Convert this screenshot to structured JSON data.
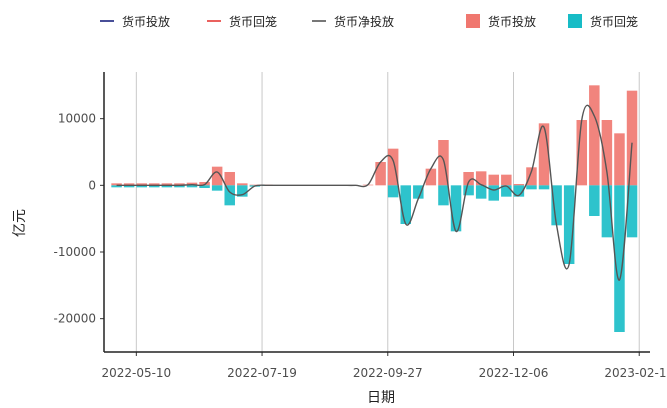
{
  "chart_data": {
    "type": "bar",
    "xlabel": "日期",
    "ylabel": "亿元",
    "ylim": [
      -25000,
      17000
    ],
    "y_ticks": [
      10000,
      0,
      -10000,
      -20000
    ],
    "x_ticks": [
      "2022-05-10",
      "2022-07-19",
      "2022-09-27",
      "2022-12-06",
      "2023-02-14"
    ],
    "x_range": [
      "2022-04-22",
      "2023-02-20"
    ],
    "grid": "vertical",
    "legend_position": "top",
    "legend": [
      {
        "label": "货币投放",
        "kind": "line",
        "color": "#1a237e"
      },
      {
        "label": "货币回笼",
        "kind": "line",
        "color": "#e53935"
      },
      {
        "label": "货币净投放",
        "kind": "line",
        "color": "#555555"
      },
      {
        "label": "货币投放",
        "kind": "bar",
        "color": "#f0776f"
      },
      {
        "label": "货币回笼",
        "kind": "bar",
        "color": "#17bcc6"
      }
    ],
    "series": [
      {
        "name": "货币投放",
        "color": "#f0776f",
        "x": [
          "2022-04-29",
          "2022-05-06",
          "2022-05-13",
          "2022-05-20",
          "2022-05-27",
          "2022-06-03",
          "2022-06-10",
          "2022-06-17",
          "2022-06-24",
          "2022-07-01",
          "2022-07-08",
          "2022-07-15",
          "2022-07-22",
          "2022-07-29",
          "2022-08-05",
          "2022-08-12",
          "2022-08-19",
          "2022-08-26",
          "2022-09-02",
          "2022-09-09",
          "2022-09-16",
          "2022-09-23",
          "2022-09-30",
          "2022-10-07",
          "2022-10-14",
          "2022-10-21",
          "2022-10-28",
          "2022-11-04",
          "2022-11-11",
          "2022-11-18",
          "2022-11-25",
          "2022-12-02",
          "2022-12-09",
          "2022-12-16",
          "2022-12-23",
          "2022-12-30",
          "2023-01-06",
          "2023-01-13",
          "2023-01-20",
          "2023-01-27",
          "2023-02-03",
          "2023-02-10"
        ],
        "values": [
          300,
          300,
          300,
          300,
          300,
          300,
          400,
          500,
          2800,
          2000,
          300,
          100,
          100,
          0,
          0,
          0,
          0,
          0,
          0,
          0,
          100,
          3500,
          5500,
          0,
          0,
          2500,
          6800,
          0,
          2000,
          2100,
          1600,
          1600,
          200,
          2700,
          9300,
          0,
          0,
          9800,
          15000,
          9800,
          7800,
          14200
        ]
      },
      {
        "name": "货币回笼",
        "color": "#17bcc6",
        "x": [
          "2022-04-29",
          "2022-05-06",
          "2022-05-13",
          "2022-05-20",
          "2022-05-27",
          "2022-06-03",
          "2022-06-10",
          "2022-06-17",
          "2022-06-24",
          "2022-07-01",
          "2022-07-08",
          "2022-07-15",
          "2022-07-22",
          "2022-07-29",
          "2022-08-05",
          "2022-08-12",
          "2022-08-19",
          "2022-08-26",
          "2022-09-02",
          "2022-09-09",
          "2022-09-16",
          "2022-09-23",
          "2022-09-30",
          "2022-10-07",
          "2022-10-14",
          "2022-10-21",
          "2022-10-28",
          "2022-11-04",
          "2022-11-11",
          "2022-11-18",
          "2022-11-25",
          "2022-12-02",
          "2022-12-09",
          "2022-12-16",
          "2022-12-23",
          "2022-12-30",
          "2023-01-06",
          "2023-01-13",
          "2023-01-20",
          "2023-01-27",
          "2023-02-03",
          "2023-02-10"
        ],
        "values": [
          -300,
          -300,
          -300,
          -300,
          -300,
          -300,
          -300,
          -400,
          -800,
          -3000,
          -1700,
          -200,
          -100,
          0,
          0,
          0,
          0,
          0,
          0,
          0,
          0,
          0,
          -1800,
          -5800,
          -2000,
          0,
          -3000,
          -6900,
          -1500,
          -2000,
          -2300,
          -1700,
          -1700,
          -600,
          -600,
          -6000,
          -11800,
          0,
          -4600,
          -7800,
          -22000,
          -7800
        ]
      },
      {
        "name": "货币净投放",
        "color": "#555555",
        "x": [
          "2022-04-29",
          "2022-05-06",
          "2022-05-13",
          "2022-05-20",
          "2022-05-27",
          "2022-06-03",
          "2022-06-10",
          "2022-06-17",
          "2022-06-24",
          "2022-07-01",
          "2022-07-08",
          "2022-07-15",
          "2022-07-22",
          "2022-07-29",
          "2022-08-05",
          "2022-08-12",
          "2022-08-19",
          "2022-08-26",
          "2022-09-02",
          "2022-09-09",
          "2022-09-16",
          "2022-09-23",
          "2022-09-30",
          "2022-10-07",
          "2022-10-14",
          "2022-10-21",
          "2022-10-28",
          "2022-11-04",
          "2022-11-11",
          "2022-11-18",
          "2022-11-25",
          "2022-12-02",
          "2022-12-09",
          "2022-12-16",
          "2022-12-23",
          "2022-12-30",
          "2023-01-06",
          "2023-01-13",
          "2023-01-20",
          "2023-01-27",
          "2023-02-03",
          "2023-02-10"
        ],
        "values": [
          0,
          0,
          0,
          0,
          0,
          0,
          100,
          100,
          2000,
          -1000,
          -1400,
          -100,
          0,
          0,
          0,
          0,
          0,
          0,
          0,
          0,
          100,
          3500,
          3700,
          -5800,
          -2000,
          2500,
          3800,
          -6900,
          500,
          100,
          -700,
          -100,
          -1500,
          2100,
          8700,
          -6000,
          -11800,
          9800,
          10400,
          2000,
          -14200,
          6400
        ]
      }
    ]
  }
}
